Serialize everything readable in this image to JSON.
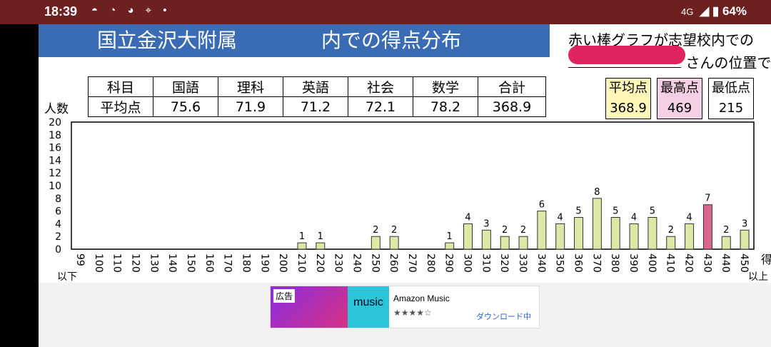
{
  "status": {
    "time": "18:39",
    "icons": "◓ ◔ ◕ ⌖ •",
    "network": "4G",
    "battery": "64%"
  },
  "header": {
    "title_school": "国立金沢大附属",
    "title_suffix": "内での得点分布"
  },
  "note": {
    "line1": "赤い棒グラフが志望校内での",
    "line2_tail": "さんの位置で"
  },
  "y_label": "人数",
  "table": {
    "headers": [
      "科目",
      "国語",
      "理科",
      "英語",
      "社会",
      "数学",
      "合計"
    ],
    "values": [
      "平均点",
      "75.6",
      "71.9",
      "71.2",
      "72.1",
      "78.2",
      "368.9"
    ]
  },
  "stats": [
    {
      "label": "平均点",
      "value": "368.9",
      "bg": "#fff6b8"
    },
    {
      "label": "最高点",
      "value": "469",
      "bg": "#f5d0e4"
    },
    {
      "label": "最低点",
      "value": "215",
      "bg": "#ffffff"
    }
  ],
  "chart_data": {
    "type": "bar",
    "categories": [
      "99",
      "100",
      "110",
      "120",
      "130",
      "140",
      "150",
      "160",
      "170",
      "180",
      "190",
      "200",
      "210",
      "220",
      "230",
      "240",
      "250",
      "260",
      "270",
      "280",
      "290",
      "300",
      "310",
      "320",
      "330",
      "340",
      "350",
      "360",
      "370",
      "380",
      "390",
      "400",
      "410",
      "420",
      "430",
      "440",
      "450"
    ],
    "values": [
      0,
      0,
      0,
      0,
      0,
      0,
      0,
      0,
      0,
      0,
      0,
      0,
      1,
      1,
      0,
      0,
      2,
      2,
      0,
      0,
      1,
      4,
      3,
      2,
      2,
      6,
      4,
      5,
      8,
      5,
      4,
      5,
      2,
      4,
      7,
      2,
      3
    ],
    "highlight_category": "430",
    "ylabel": "人数",
    "xlabel": "得",
    "x_first_note": "以下",
    "x_last_note": "以上",
    "ylim": [
      0,
      20
    ],
    "yticks": [
      0,
      2,
      4,
      6,
      8,
      10,
      12,
      14,
      16,
      18,
      20
    ],
    "colors": {
      "bar": "#dbe8a6",
      "highlight": "#d9668f"
    }
  },
  "ad": {
    "badge": "広告",
    "brand": "music",
    "title": "Amazon Music",
    "stars": "★★★★☆",
    "action": "ダウンロード中"
  }
}
